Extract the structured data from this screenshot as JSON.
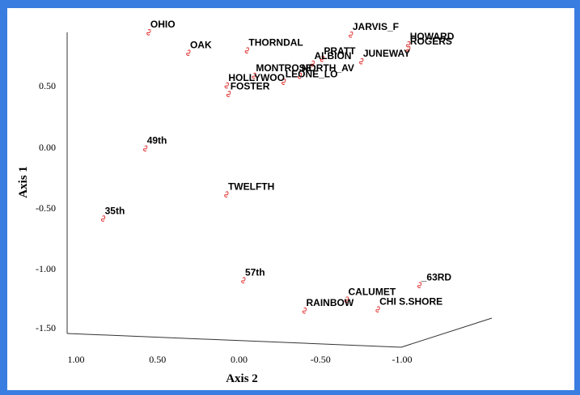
{
  "chart_data": {
    "type": "scatter",
    "title": "",
    "xlabel": "Axis 2",
    "ylabel": "Axis 1",
    "xlim": [
      1.0,
      -1.0
    ],
    "ylim": [
      -1.6,
      0.95
    ],
    "x_ticks": [
      "1.00",
      "0.50",
      "0.00",
      "-0.50",
      "-1.00"
    ],
    "y_ticks": [
      "0.50",
      "0.00",
      "-0.50",
      "-1.00",
      "-1.50"
    ],
    "grid": false,
    "legend": "none",
    "marker_color": "#e03030",
    "points": [
      {
        "label": "OHIO",
        "x": 0.54,
        "y": 0.94
      },
      {
        "label": "OAK",
        "x": 0.3,
        "y": 0.77
      },
      {
        "label": "THORNDAL",
        "x": -0.06,
        "y": 0.79
      },
      {
        "label": "JARVIS_F",
        "x": -0.7,
        "y": 0.92
      },
      {
        "label": "HOWARD",
        "x": -1.05,
        "y": 0.84
      },
      {
        "label": "ROGERS",
        "x": -1.05,
        "y": 0.8
      },
      {
        "label": "PRATT",
        "x": -0.52,
        "y": 0.72
      },
      {
        "label": "ALBION",
        "x": -0.46,
        "y": 0.68
      },
      {
        "label": "JUNEWAY",
        "x": -0.76,
        "y": 0.7
      },
      {
        "label": "MONTROSE",
        "x": -0.1,
        "y": 0.58
      },
      {
        "label": "NORTH_AV",
        "x": -0.38,
        "y": 0.58
      },
      {
        "label": "LEONE_LO",
        "x": -0.28,
        "y": 0.53
      },
      {
        "label": "HOLLYWOO",
        "x": 0.07,
        "y": 0.5
      },
      {
        "label": "FOSTER",
        "x": 0.06,
        "y": 0.43
      },
      {
        "label": "49th",
        "x": 0.58,
        "y": -0.02
      },
      {
        "label": "TWELFTH",
        "x": 0.09,
        "y": -0.4
      },
      {
        "label": "35th",
        "x": 0.85,
        "y": -0.6
      },
      {
        "label": "57th",
        "x": 0.0,
        "y": -1.11
      },
      {
        "label": "_63RD",
        "x": -1.08,
        "y": -1.15
      },
      {
        "label": "CALUMET",
        "x": -0.63,
        "y": -1.27
      },
      {
        "label": "CHI S.SHORE",
        "x": -0.82,
        "y": -1.35
      },
      {
        "label": "RAINBOW",
        "x": -0.37,
        "y": -1.36
      }
    ]
  }
}
